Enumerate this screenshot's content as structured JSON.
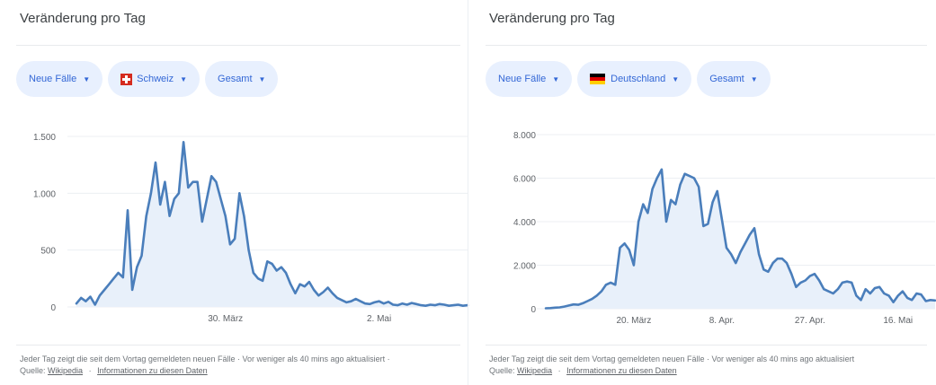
{
  "panels": [
    {
      "title": "Veränderung pro Tag",
      "chips": {
        "metric": "Neue Fälle",
        "country": "Schweiz",
        "scope": "Gesamt"
      },
      "footer": {
        "note": "Jeder Tag zeigt die seit dem Vortag gemeldeten neuen Fälle · Vor weniger als 40 mins ago aktualisiert ·",
        "source_label": "Quelle:",
        "source_link": "Wikipedia",
        "info_link": "Informationen zu diesen Daten"
      }
    },
    {
      "title": "Veränderung pro Tag",
      "chips": {
        "metric": "Neue Fälle",
        "country": "Deutschland",
        "scope": "Gesamt"
      },
      "footer": {
        "note": "Jeder Tag zeigt die seit dem Vortag gemeldeten neuen Fälle · Vor weniger als 40 mins ago aktualisiert",
        "source_label": "Quelle:",
        "source_link": "Wikipedia",
        "info_link": "Informationen zu diesen Daten"
      }
    }
  ],
  "colors": {
    "line": "#4a7ebb",
    "fill": "#e8f0fa",
    "grid": "#eceff3",
    "chip_bg": "#e8f0fe",
    "chip_text": "#3367d6"
  },
  "chart_data": [
    {
      "type": "area",
      "title": "",
      "x_start": "2020-02-27",
      "x_end": "2020-05-21",
      "ylim": [
        0,
        1500
      ],
      "yticks": [
        0,
        500,
        1000,
        1500
      ],
      "ytick_labels": [
        "0",
        "500",
        "1.000",
        "1.500"
      ],
      "xtick_dates": [
        "2020-03-30",
        "2020-05-02"
      ],
      "xtick_labels": [
        "30. März",
        "2. Mai"
      ],
      "grid": true,
      "values": [
        30,
        80,
        50,
        90,
        20,
        100,
        150,
        200,
        250,
        300,
        260,
        850,
        150,
        350,
        450,
        800,
        1000,
        1270,
        900,
        1100,
        800,
        950,
        1000,
        1450,
        1050,
        1100,
        1100,
        750,
        950,
        1150,
        1100,
        950,
        800,
        550,
        600,
        1000,
        800,
        500,
        300,
        250,
        230,
        400,
        380,
        320,
        350,
        300,
        200,
        120,
        200,
        180,
        220,
        150,
        100,
        130,
        170,
        120,
        80,
        60,
        40,
        50,
        70,
        50,
        30,
        25,
        40,
        50,
        30,
        45,
        20,
        15,
        30,
        20,
        35,
        25,
        15,
        10,
        20,
        15,
        25,
        20,
        10,
        15,
        20,
        10,
        15
      ]
    },
    {
      "type": "area",
      "title": "",
      "x_start": "2020-03-01",
      "x_end": "2020-05-24",
      "ylim": [
        0,
        8000
      ],
      "yticks": [
        0,
        2000,
        4000,
        6000,
        8000
      ],
      "ytick_labels": [
        "0",
        "2.000",
        "4.000",
        "6.000",
        "8.000"
      ],
      "xtick_dates": [
        "2020-03-20",
        "2020-04-08",
        "2020-04-27",
        "2020-05-16"
      ],
      "xtick_labels": [
        "20. März",
        "8. Apr.",
        "27. Apr.",
        "16. Mai"
      ],
      "grid": true,
      "values": [
        20,
        30,
        50,
        60,
        100,
        150,
        200,
        180,
        250,
        350,
        450,
        600,
        800,
        1100,
        1200,
        1100,
        2800,
        3000,
        2700,
        2000,
        4000,
        4800,
        4400,
        5500,
        6000,
        6400,
        4000,
        5000,
        4800,
        5700,
        6200,
        6100,
        6000,
        5600,
        3800,
        3900,
        4900,
        5400,
        4100,
        2800,
        2500,
        2100,
        2600,
        3000,
        3400,
        3700,
        2500,
        1800,
        1700,
        2100,
        2300,
        2300,
        2100,
        1600,
        1000,
        1200,
        1300,
        1500,
        1600,
        1300,
        900,
        800,
        700,
        900,
        1200,
        1250,
        1200,
        600,
        400,
        900,
        700,
        950,
        1000,
        700,
        600,
        300,
        600,
        800,
        500,
        400,
        700,
        650,
        350,
        400,
        380
      ]
    }
  ]
}
